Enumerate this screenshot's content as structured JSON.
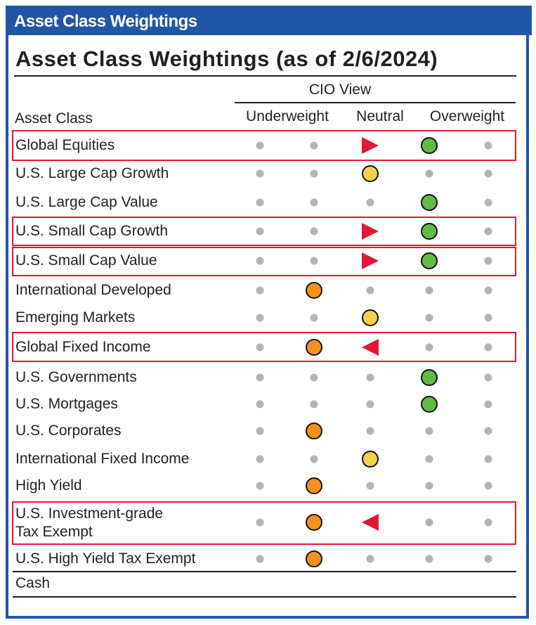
{
  "header": {
    "title": "Asset Class Weightings"
  },
  "table": {
    "title": "Asset Class Weightings (as of 2/6/2024)",
    "group_header": "CIO View",
    "asset_class_header": "Asset Class",
    "column_headers": [
      "Underweight",
      "Neutral",
      "Overweight"
    ],
    "colors": {
      "green": "#62bb46",
      "yellow": "#f6d04d",
      "orange": "#f7901e",
      "arrow": "#e31837",
      "dot": "#b3b3b3",
      "highlight": "#e31837",
      "brand": "#2155a6"
    },
    "rows": [
      {
        "label": "Global Equities",
        "marks": [
          "dot",
          "dot",
          "arrow-right",
          "green",
          "dot"
        ],
        "highlighted": true
      },
      {
        "label": "U.S. Large Cap Growth",
        "marks": [
          "dot",
          "dot",
          "yellow",
          "dot",
          "dot"
        ],
        "highlighted": false
      },
      {
        "label": "U.S. Large Cap Value",
        "marks": [
          "dot",
          "dot",
          "dot",
          "green",
          "dot"
        ],
        "highlighted": false
      },
      {
        "label": "U.S. Small Cap Growth",
        "marks": [
          "dot",
          "dot",
          "arrow-right",
          "green",
          "dot"
        ],
        "highlighted": true
      },
      {
        "label": "U.S. Small Cap Value",
        "marks": [
          "dot",
          "dot",
          "arrow-right",
          "green",
          "dot"
        ],
        "highlighted": true
      },
      {
        "label": "International Developed",
        "marks": [
          "dot",
          "orange",
          "dot",
          "dot",
          "dot"
        ],
        "highlighted": false
      },
      {
        "label": "Emerging Markets",
        "marks": [
          "dot",
          "dot",
          "yellow",
          "dot",
          "dot"
        ],
        "highlighted": false
      },
      {
        "label": "Global Fixed Income",
        "marks": [
          "dot",
          "orange",
          "arrow-left",
          "dot",
          "dot"
        ],
        "highlighted": true
      },
      {
        "label": "U.S. Governments",
        "marks": [
          "dot",
          "dot",
          "dot",
          "green",
          "dot"
        ],
        "highlighted": false
      },
      {
        "label": "U.S. Mortgages",
        "marks": [
          "dot",
          "dot",
          "dot",
          "green",
          "dot"
        ],
        "highlighted": false
      },
      {
        "label": "U.S. Corporates",
        "marks": [
          "dot",
          "orange",
          "dot",
          "dot",
          "dot"
        ],
        "highlighted": false
      },
      {
        "label": "International Fixed Income",
        "marks": [
          "dot",
          "dot",
          "yellow",
          "dot",
          "dot"
        ],
        "highlighted": false
      },
      {
        "label": "High Yield",
        "marks": [
          "dot",
          "orange",
          "dot",
          "dot",
          "dot"
        ],
        "highlighted": false
      },
      {
        "label": "U.S. Investment-grade\nTax Exempt",
        "marks": [
          "dot",
          "orange",
          "arrow-left",
          "dot",
          "dot"
        ],
        "highlighted": true
      },
      {
        "label": "U.S. High Yield Tax Exempt",
        "marks": [
          "dot",
          "orange",
          "dot",
          "dot",
          "dot"
        ],
        "highlighted": false
      },
      {
        "label": "Cash",
        "marks": [],
        "highlighted": false
      }
    ]
  }
}
